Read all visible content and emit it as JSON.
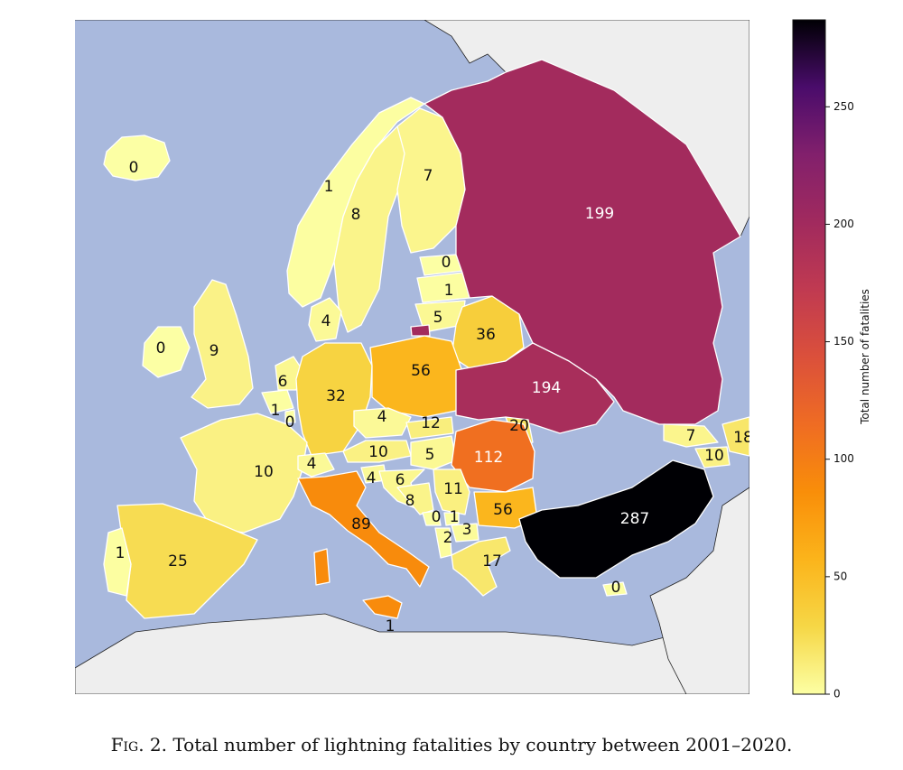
{
  "caption": {
    "prefix": "Fig. 2.",
    "text": "Total number of lightning fatalities by country between 2001–2020."
  },
  "colorbar": {
    "label": "Total number of fatalities",
    "colormap": "inferno_r",
    "range": [
      0,
      287
    ],
    "ticks": [
      0,
      50,
      100,
      150,
      200,
      250
    ]
  },
  "colors": {
    "sea": "#a9b9dd",
    "other_land": "#eeeeee",
    "border": "#ffffff"
  },
  "countries": [
    {
      "name": "Iceland",
      "value": 0
    },
    {
      "name": "Norway",
      "value": 1
    },
    {
      "name": "Sweden",
      "value": 8
    },
    {
      "name": "Finland",
      "value": 7
    },
    {
      "name": "Estonia",
      "value": 0
    },
    {
      "name": "Latvia",
      "value": 1
    },
    {
      "name": "Lithuania",
      "value": 5
    },
    {
      "name": "Belarus",
      "value": 36
    },
    {
      "name": "Russia",
      "value": 199
    },
    {
      "name": "Denmark",
      "value": 4
    },
    {
      "name": "Ireland",
      "value": 0
    },
    {
      "name": "United Kingdom",
      "value": 9
    },
    {
      "name": "Netherlands",
      "value": 6
    },
    {
      "name": "Belgium",
      "value": 1
    },
    {
      "name": "Luxembourg",
      "value": 0
    },
    {
      "name": "Germany",
      "value": 32
    },
    {
      "name": "Poland",
      "value": 56
    },
    {
      "name": "Ukraine",
      "value": 194
    },
    {
      "name": "Czechia",
      "value": 4
    },
    {
      "name": "Slovakia",
      "value": 12
    },
    {
      "name": "Moldova",
      "value": 20
    },
    {
      "name": "France",
      "value": 10
    },
    {
      "name": "Austria",
      "value": 10
    },
    {
      "name": "Hungary",
      "value": 5
    },
    {
      "name": "Romania",
      "value": 112
    },
    {
      "name": "Switzerland",
      "value": 4
    },
    {
      "name": "Slovenia",
      "value": 4
    },
    {
      "name": "Croatia",
      "value": 6
    },
    {
      "name": "Bosnia and Herzegovina",
      "value": 8
    },
    {
      "name": "Serbia",
      "value": 11
    },
    {
      "name": "Montenegro",
      "value": 0
    },
    {
      "name": "Kosovo",
      "value": 1
    },
    {
      "name": "North Macedonia",
      "value": 3
    },
    {
      "name": "Albania",
      "value": 2
    },
    {
      "name": "Bulgaria",
      "value": 56
    },
    {
      "name": "Italy",
      "value": 89
    },
    {
      "name": "Malta",
      "value": 1
    },
    {
      "name": "Greece",
      "value": 17
    },
    {
      "name": "Turkey",
      "value": 287
    },
    {
      "name": "Cyprus",
      "value": 0
    },
    {
      "name": "Georgia",
      "value": 7
    },
    {
      "name": "Armenia",
      "value": 10
    },
    {
      "name": "Azerbaijan",
      "value": 18
    },
    {
      "name": "Spain",
      "value": 25
    },
    {
      "name": "Portugal",
      "value": 1
    }
  ]
}
